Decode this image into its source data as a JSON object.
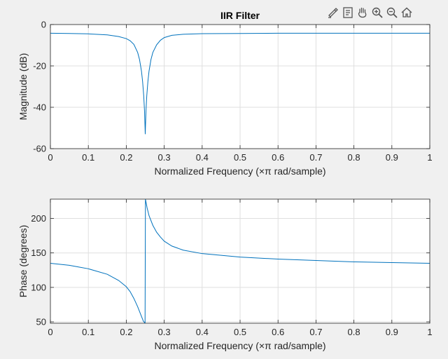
{
  "toolbar": {
    "tools": [
      {
        "name": "brush-icon"
      },
      {
        "name": "data-tips-icon"
      },
      {
        "name": "pan-icon"
      },
      {
        "name": "zoom-in-icon"
      },
      {
        "name": "zoom-out-icon"
      },
      {
        "name": "home-icon"
      }
    ]
  },
  "colors": {
    "line": "#0072bd",
    "axes_bg": "#ffffff",
    "figure_bg": "#f0f0f0",
    "grid": "#dfdfdf",
    "axis": "#262626"
  },
  "chart_data": [
    {
      "type": "line",
      "title": "IIR Filter",
      "xlabel": "Normalized Frequency  (×π rad/sample)",
      "ylabel": "Magnitude (dB)",
      "xlim": [
        0,
        1
      ],
      "ylim": [
        -60,
        0
      ],
      "grid": true,
      "xticks": [
        0,
        0.1,
        0.2,
        0.3,
        0.4,
        0.5,
        0.6,
        0.7,
        0.8,
        0.9,
        1
      ],
      "xtick_labels": [
        "0",
        "0.1",
        "0.2",
        "0.3",
        "0.4",
        "0.5",
        "0.6",
        "0.7",
        "0.8",
        "0.9",
        "1"
      ],
      "yticks": [
        -60,
        -40,
        -20,
        0
      ],
      "ytick_labels": [
        "-60",
        "-40",
        "-20",
        "0"
      ],
      "series": [
        {
          "x": [
            0,
            0.05,
            0.1,
            0.15,
            0.18,
            0.2,
            0.21,
            0.22,
            0.23,
            0.235,
            0.24,
            0.243,
            0.246,
            0.248,
            0.249,
            0.25,
            0.251,
            0.252,
            0.254,
            0.257,
            0.26,
            0.265,
            0.27,
            0.28,
            0.29,
            0.3,
            0.32,
            0.35,
            0.4,
            0.5,
            0.6,
            0.7,
            0.8,
            0.9,
            1
          ],
          "y": [
            -4.2,
            -4.3,
            -4.5,
            -5.0,
            -5.8,
            -6.8,
            -7.8,
            -9.6,
            -13.5,
            -17.0,
            -22.5,
            -27.5,
            -34.5,
            -41.5,
            -47.0,
            -53.0,
            -47.0,
            -41.5,
            -34.5,
            -27.5,
            -22.5,
            -17.0,
            -13.5,
            -9.8,
            -7.6,
            -6.3,
            -5.2,
            -4.7,
            -4.4,
            -4.3,
            -4.2,
            -4.2,
            -4.2,
            -4.2,
            -4.2
          ]
        }
      ]
    },
    {
      "type": "line",
      "title": "",
      "xlabel": "Normalized Frequency  (×π rad/sample)",
      "ylabel": "Phase (degrees)",
      "xlim": [
        0,
        1
      ],
      "ylim": [
        48,
        228
      ],
      "grid": true,
      "xticks": [
        0,
        0.1,
        0.2,
        0.3,
        0.4,
        0.5,
        0.6,
        0.7,
        0.8,
        0.9,
        1
      ],
      "xtick_labels": [
        "0",
        "0.1",
        "0.2",
        "0.3",
        "0.4",
        "0.5",
        "0.6",
        "0.7",
        "0.8",
        "0.9",
        "1"
      ],
      "yticks": [
        50,
        100,
        150,
        200
      ],
      "ytick_labels": [
        "50",
        "100",
        "150",
        "200"
      ],
      "series": [
        {
          "x": [
            0,
            0.05,
            0.1,
            0.15,
            0.18,
            0.2,
            0.21,
            0.22,
            0.23,
            0.24,
            0.245,
            0.2495,
            0.2505,
            0.255,
            0.26,
            0.27,
            0.28,
            0.29,
            0.3,
            0.32,
            0.35,
            0.4,
            0.5,
            0.6,
            0.7,
            0.8,
            0.9,
            1
          ],
          "y": [
            135,
            132,
            127,
            119,
            110,
            101,
            94,
            84,
            72,
            58,
            51,
            48,
            228,
            215,
            204,
            190,
            180,
            173,
            167,
            160,
            154,
            149,
            144,
            141,
            139,
            137,
            136,
            135
          ]
        }
      ]
    }
  ]
}
